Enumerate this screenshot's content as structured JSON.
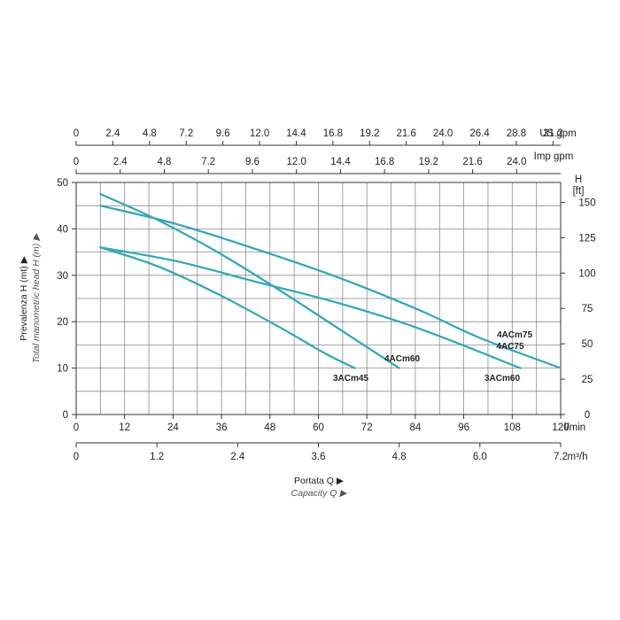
{
  "chart_data": {
    "type": "line",
    "x_axis": {
      "label_main": "Portata Q",
      "label_sub": "Capacity Q",
      "unit": "l/min",
      "range": [
        0,
        120
      ],
      "ticks": [
        "0",
        "12",
        "24",
        "36",
        "48",
        "60",
        "72",
        "84",
        "96",
        "108",
        "120"
      ]
    },
    "x_axis_m3h": {
      "unit": "m³/h",
      "ticks": [
        "0",
        "1.2",
        "2.4",
        "3.6",
        "4.8",
        "6.0",
        "7.2"
      ]
    },
    "x_axis_us_gpm": {
      "unit": "US gpm",
      "ticks": [
        "0",
        "2.4",
        "4.8",
        "7.2",
        "9.6",
        "12.0",
        "14.4",
        "16.8",
        "19.2",
        "21.6",
        "24.0",
        "26.4",
        "28.8",
        "31.2"
      ]
    },
    "x_axis_imp_gpm": {
      "unit": "Imp gpm",
      "ticks": [
        "0",
        "2.4",
        "4.8",
        "7.2",
        "9.6",
        "12.0",
        "14.4",
        "16.8",
        "19.2",
        "21.6",
        "24.0"
      ]
    },
    "y_axis": {
      "label_main": "Prevalenza H (mt)",
      "label_sub": "Total manometric head H (m)",
      "range": [
        0,
        50
      ],
      "ticks": [
        "0",
        "10",
        "20",
        "30",
        "40",
        "50"
      ]
    },
    "y_axis_ft": {
      "unit_line1": "H",
      "unit_line2": "[ft]",
      "ticks": [
        "0",
        "25",
        "50",
        "75",
        "100",
        "125",
        "150"
      ]
    },
    "grid": true,
    "series": [
      {
        "name": "3ACm45",
        "color": "#2aa9b8",
        "x": [
          6,
          20,
          35,
          50,
          62,
          69
        ],
        "y": [
          36,
          32,
          26,
          19,
          13,
          10
        ],
        "label": "3ACm45"
      },
      {
        "name": "4ACm60",
        "color": "#2aa9b8",
        "x": [
          6,
          20,
          35,
          50,
          65,
          80
        ],
        "y": [
          47.5,
          42,
          35,
          27,
          18.5,
          10
        ],
        "label": "4ACm60"
      },
      {
        "name": "3ACm60",
        "color": "#2aa9b8",
        "x": [
          6,
          25,
          45,
          65,
          85,
          110
        ],
        "y": [
          36,
          33,
          28.5,
          24,
          18.5,
          10
        ],
        "label": "3ACm60"
      },
      {
        "name": "4ACm75",
        "color": "#2aa9b8",
        "x": [
          6,
          25,
          45,
          65,
          85,
          100,
          120
        ],
        "y": [
          45,
          41,
          35.5,
          29.5,
          22.5,
          16.5,
          10
        ],
        "label": "4ACm75"
      },
      {
        "name": "4AC75",
        "color": "#2aa9b8",
        "x": [],
        "y": [],
        "label": "4AC75"
      }
    ]
  }
}
